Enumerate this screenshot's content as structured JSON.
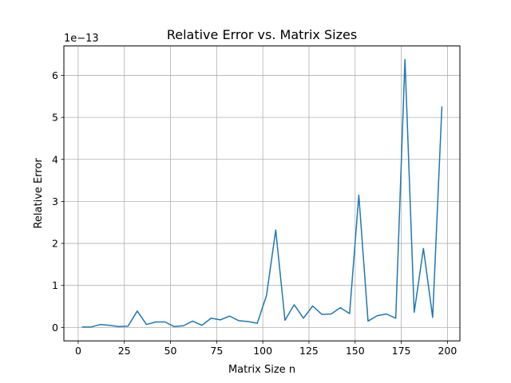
{
  "chart_data": {
    "type": "line",
    "title": "Relative Error vs. Matrix Sizes",
    "xlabel": "Matrix Size n",
    "ylabel": "Relative Error",
    "y_multiplier_label": "1e−13",
    "xlim": [
      -7.75,
      206.75
    ],
    "ylim": [
      -0.32,
      6.7
    ],
    "grid": true,
    "line_color": "#1f77b4",
    "x_ticks": [
      {
        "value": 0,
        "label": "0"
      },
      {
        "value": 25,
        "label": "25"
      },
      {
        "value": 50,
        "label": "50"
      },
      {
        "value": 75,
        "label": "75"
      },
      {
        "value": 100,
        "label": "100"
      },
      {
        "value": 125,
        "label": "125"
      },
      {
        "value": 150,
        "label": "150"
      },
      {
        "value": 175,
        "label": "175"
      },
      {
        "value": 200,
        "label": "200"
      }
    ],
    "y_ticks": [
      {
        "value": 0,
        "label": "0"
      },
      {
        "value": 1,
        "label": "1"
      },
      {
        "value": 2,
        "label": "2"
      },
      {
        "value": 3,
        "label": "3"
      },
      {
        "value": 4,
        "label": "4"
      },
      {
        "value": 5,
        "label": "5"
      },
      {
        "value": 6,
        "label": "6"
      }
    ],
    "series": [
      {
        "x": [
          2,
          7,
          12,
          17,
          22,
          27,
          32,
          37,
          42,
          47,
          52,
          57,
          62,
          67,
          72,
          77,
          82,
          87,
          92,
          97,
          102,
          107,
          112,
          117,
          122,
          127,
          132,
          137,
          142,
          147,
          152,
          157,
          162,
          167,
          172,
          177,
          182,
          187,
          192,
          197
        ],
        "values": [
          0.01,
          0.01,
          0.07,
          0.05,
          0.02,
          0.03,
          0.39,
          0.07,
          0.13,
          0.13,
          0.02,
          0.04,
          0.15,
          0.05,
          0.22,
          0.18,
          0.27,
          0.16,
          0.14,
          0.1,
          0.76,
          2.32,
          0.17,
          0.54,
          0.22,
          0.51,
          0.31,
          0.32,
          0.47,
          0.33,
          3.15,
          0.15,
          0.28,
          0.32,
          0.22,
          6.38,
          0.36,
          1.88,
          0.24,
          5.26
        ]
      }
    ]
  }
}
